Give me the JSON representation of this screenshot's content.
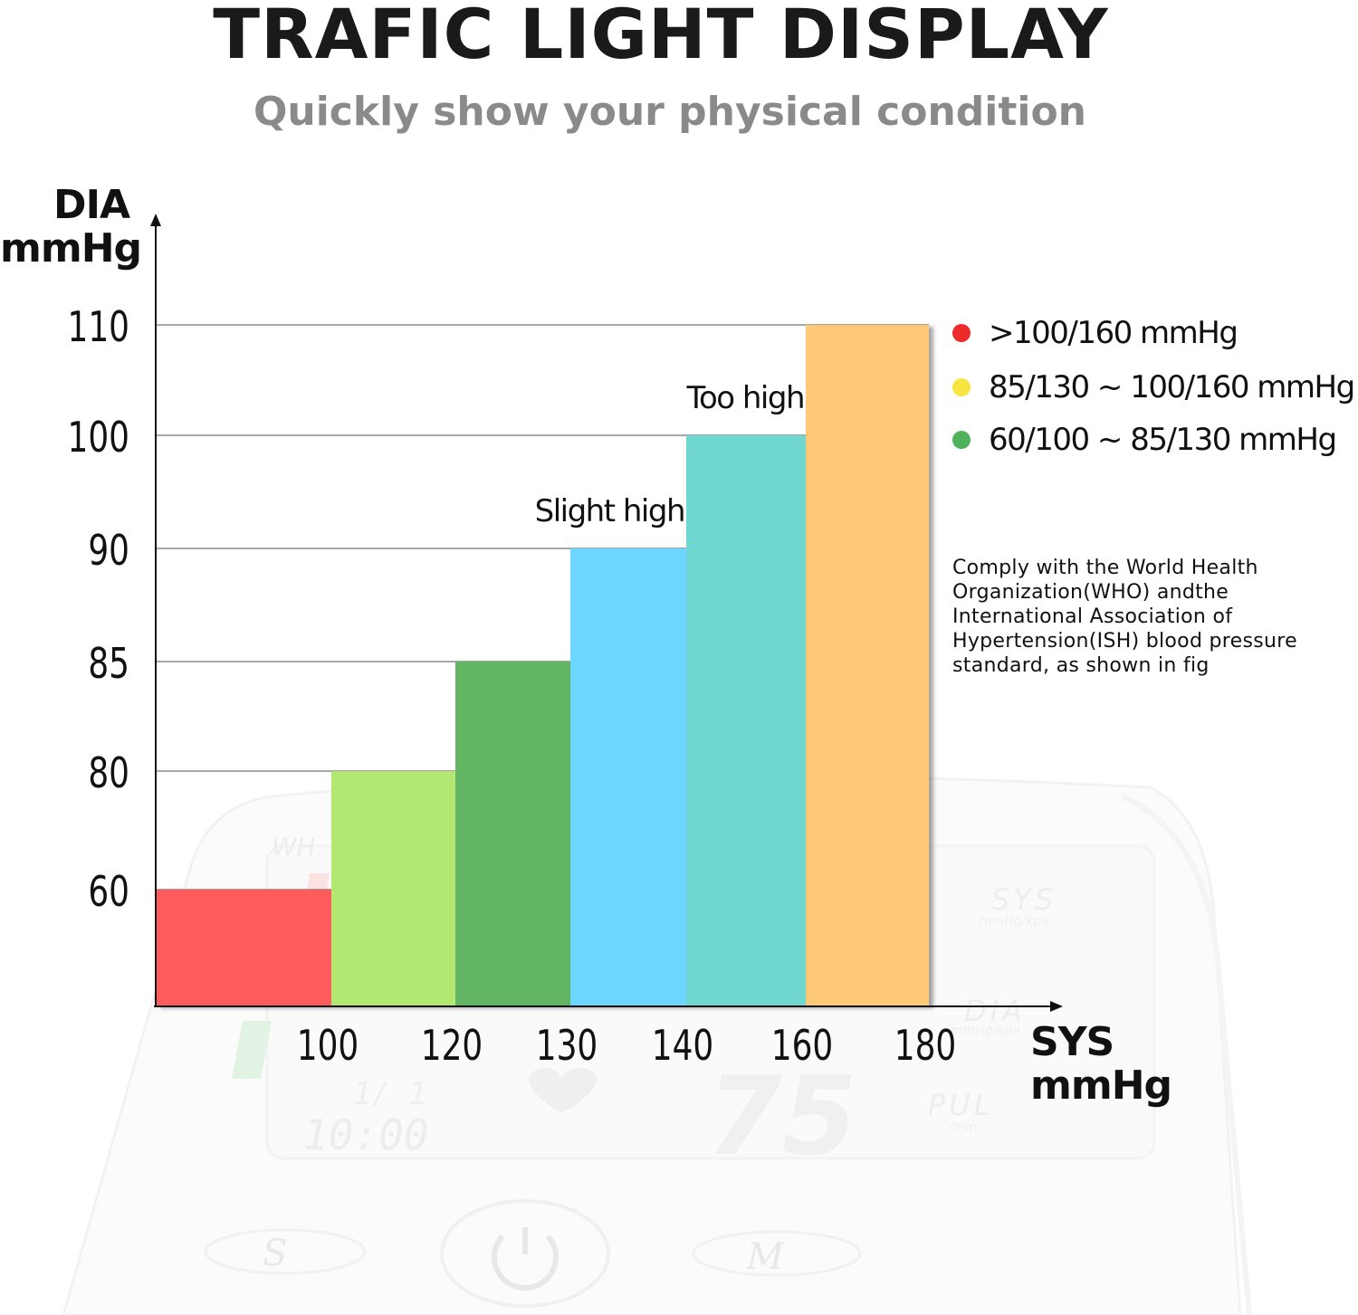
{
  "title": "TRAFIC LIGHT DISPLAY",
  "subtitle": "Quickly show your physical condition",
  "chart_data": {
    "type": "bar",
    "ylabel_lines": [
      "DIA",
      "mmHg"
    ],
    "xlabel_lines": [
      "SYS",
      "mmHg"
    ],
    "y_ticks": [
      "60",
      "80",
      "85",
      "90",
      "100",
      "110"
    ],
    "x_ticks": [
      "100",
      "120",
      "130",
      "140",
      "160",
      "180"
    ],
    "bars": [
      {
        "sys_from": "",
        "sys_to": "100",
        "dia": "60",
        "color": "#fe5c5c"
      },
      {
        "sys_from": "100",
        "sys_to": "120",
        "dia": "80",
        "color": "#b2e872"
      },
      {
        "sys_from": "120",
        "sys_to": "130",
        "dia": "85",
        "color": "#62b562"
      },
      {
        "sys_from": "130",
        "sys_to": "140",
        "dia": "90",
        "color": "#6dd6fe"
      },
      {
        "sys_from": "140",
        "sys_to": "160",
        "dia": "100",
        "color": "#6fd6d0"
      },
      {
        "sys_from": "160",
        "sys_to": "180",
        "dia": "110",
        "color": "#fec977"
      }
    ],
    "annotations": [
      {
        "text": "Slight high",
        "bar": 3
      },
      {
        "text": "Too high",
        "bar": 4
      }
    ],
    "grid": true
  },
  "legend": [
    {
      "text": ">100/160 mmHg",
      "color": "#ee2b2b"
    },
    {
      "text": "85/130 ~ 100/160 mmHg",
      "color": "#f8e542"
    },
    {
      "text": "60/100 ~  85/130 mmHg",
      "color": "#4fb25a"
    }
  ],
  "note": "Comply with the World Health Organization(WHO) andthe International Association of Hypertension(ISH) blood pressure standard, as shown in fig"
}
